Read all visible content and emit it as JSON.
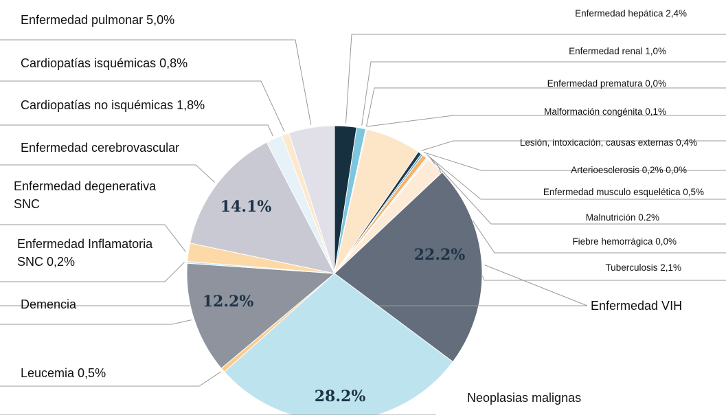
{
  "chart_data": {
    "type": "pie",
    "categories": [
      "Enfermedad hepática 2,4%",
      "Enfermedad renal 1,0%",
      "Enfermedad prematura 0,0%",
      "Malformación congénita 0,1%",
      null,
      "Lesión, intoxicación, causas externas 0,4%",
      "Arterioesclerosis 0,2% 0,0%",
      "Enfermedad musculo esquelética 0,5%",
      "Malnutrición 0.2%",
      "Fiebre hemorrágica 0,0%",
      "Tuberculosis 2,1%",
      "Enfermedad VIH",
      "Neoplasias malignas",
      "Leucemia 0,5%",
      "Demencia",
      "Enfermedad Inflamatoria SNC 0,2%",
      "Enfermedad degenerativa SNC",
      "Enfermedad cerebrovascular",
      "Cardiopatías no isquémicas 1,8%",
      "Cardiopatías isquémicas 0,8%",
      "Enfermedad pulmonar 5,0%"
    ],
    "values": [
      2.4,
      1.0,
      0.0,
      0.1,
      6.1,
      0.4,
      0.2,
      0.5,
      0.2,
      0.0,
      2.1,
      22.2,
      28.2,
      0.5,
      12.2,
      0.2,
      2.0,
      14.1,
      1.8,
      0.8,
      5.0
    ],
    "value_labels": [
      null,
      null,
      null,
      null,
      null,
      null,
      null,
      null,
      null,
      null,
      null,
      "22.2%",
      "28.2%",
      null,
      "12.2%",
      null,
      null,
      "14.1%",
      null,
      null,
      null
    ],
    "colors": [
      "#16303f",
      "#7dc6dd",
      "#f5c08a",
      "#cfe8f0",
      "#fde6c8",
      "#1f3b4d",
      "#5aa0c0",
      "#f7b267",
      "#e8eef2",
      "#cccccc",
      "#fdebd8",
      "#636d7b",
      "#bde3ee",
      "#fbcb8c",
      "#8e939e",
      "#bde3ee",
      "#fdd9a8",
      "#c9c9d4",
      "#e6f2f8",
      "#fde8cc",
      "#e1e0e8"
    ]
  }
}
